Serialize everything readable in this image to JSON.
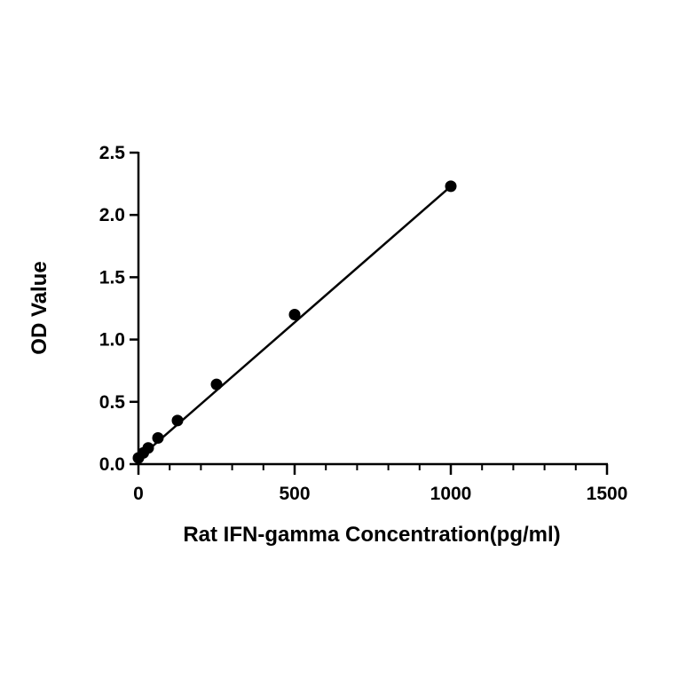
{
  "chart_data": {
    "type": "scatter",
    "xlabel": "Rat IFN-gamma Concentration(pg/ml)",
    "ylabel": "OD Value",
    "xlim": [
      0,
      1500
    ],
    "ylim": [
      0,
      2.5
    ],
    "xticks": [
      0,
      500,
      1000,
      1500
    ],
    "xtick_labels": [
      "0",
      "500",
      "1000",
      "1500"
    ],
    "yticks": [
      0,
      0.5,
      1.0,
      1.5,
      2.0,
      2.5
    ],
    "ytick_labels": [
      "0.0",
      "0.5",
      "1.0",
      "1.5",
      "2.0",
      "2.5"
    ],
    "x_minor_ticks": 5,
    "grid": false,
    "series": [
      {
        "x": [
          0,
          15.6,
          31.25,
          62.5,
          125,
          250,
          500,
          1000
        ],
        "y": [
          0.05,
          0.09,
          0.13,
          0.21,
          0.35,
          0.64,
          1.2,
          2.23
        ]
      }
    ],
    "fit_line": {
      "type": "linear",
      "x": [
        0,
        1000
      ],
      "y": [
        0.045,
        2.23
      ]
    }
  }
}
